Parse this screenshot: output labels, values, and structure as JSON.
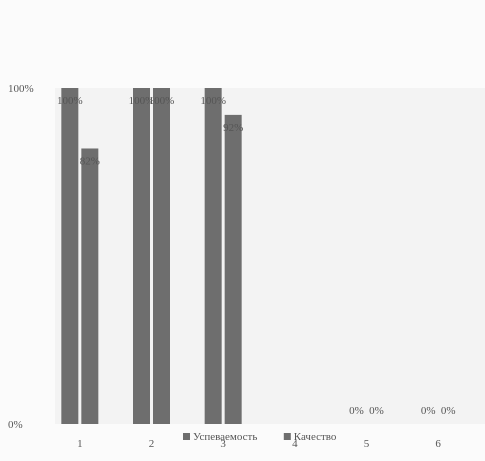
{
  "chart_data": {
    "type": "bar",
    "categories": [
      "1",
      "2",
      "3",
      "4",
      "5",
      "6"
    ],
    "series": [
      {
        "name": "Успеваемость",
        "values": [
          100,
          100,
          100,
          0,
          0,
          0
        ],
        "labels": [
          "100%",
          "100%",
          "100%",
          "",
          "0%",
          "0%"
        ],
        "color": "#6e6e6e"
      },
      {
        "name": "Качество",
        "values": [
          82,
          100,
          92,
          0,
          0,
          0
        ],
        "labels": [
          "82%",
          "100%",
          "92%",
          "",
          "0%",
          "0%"
        ],
        "color": "#6e6e6e"
      }
    ],
    "ylim": [
      0,
      100
    ],
    "yticks": [
      "0%",
      "100%"
    ],
    "grid": false,
    "legend": "bottom"
  }
}
